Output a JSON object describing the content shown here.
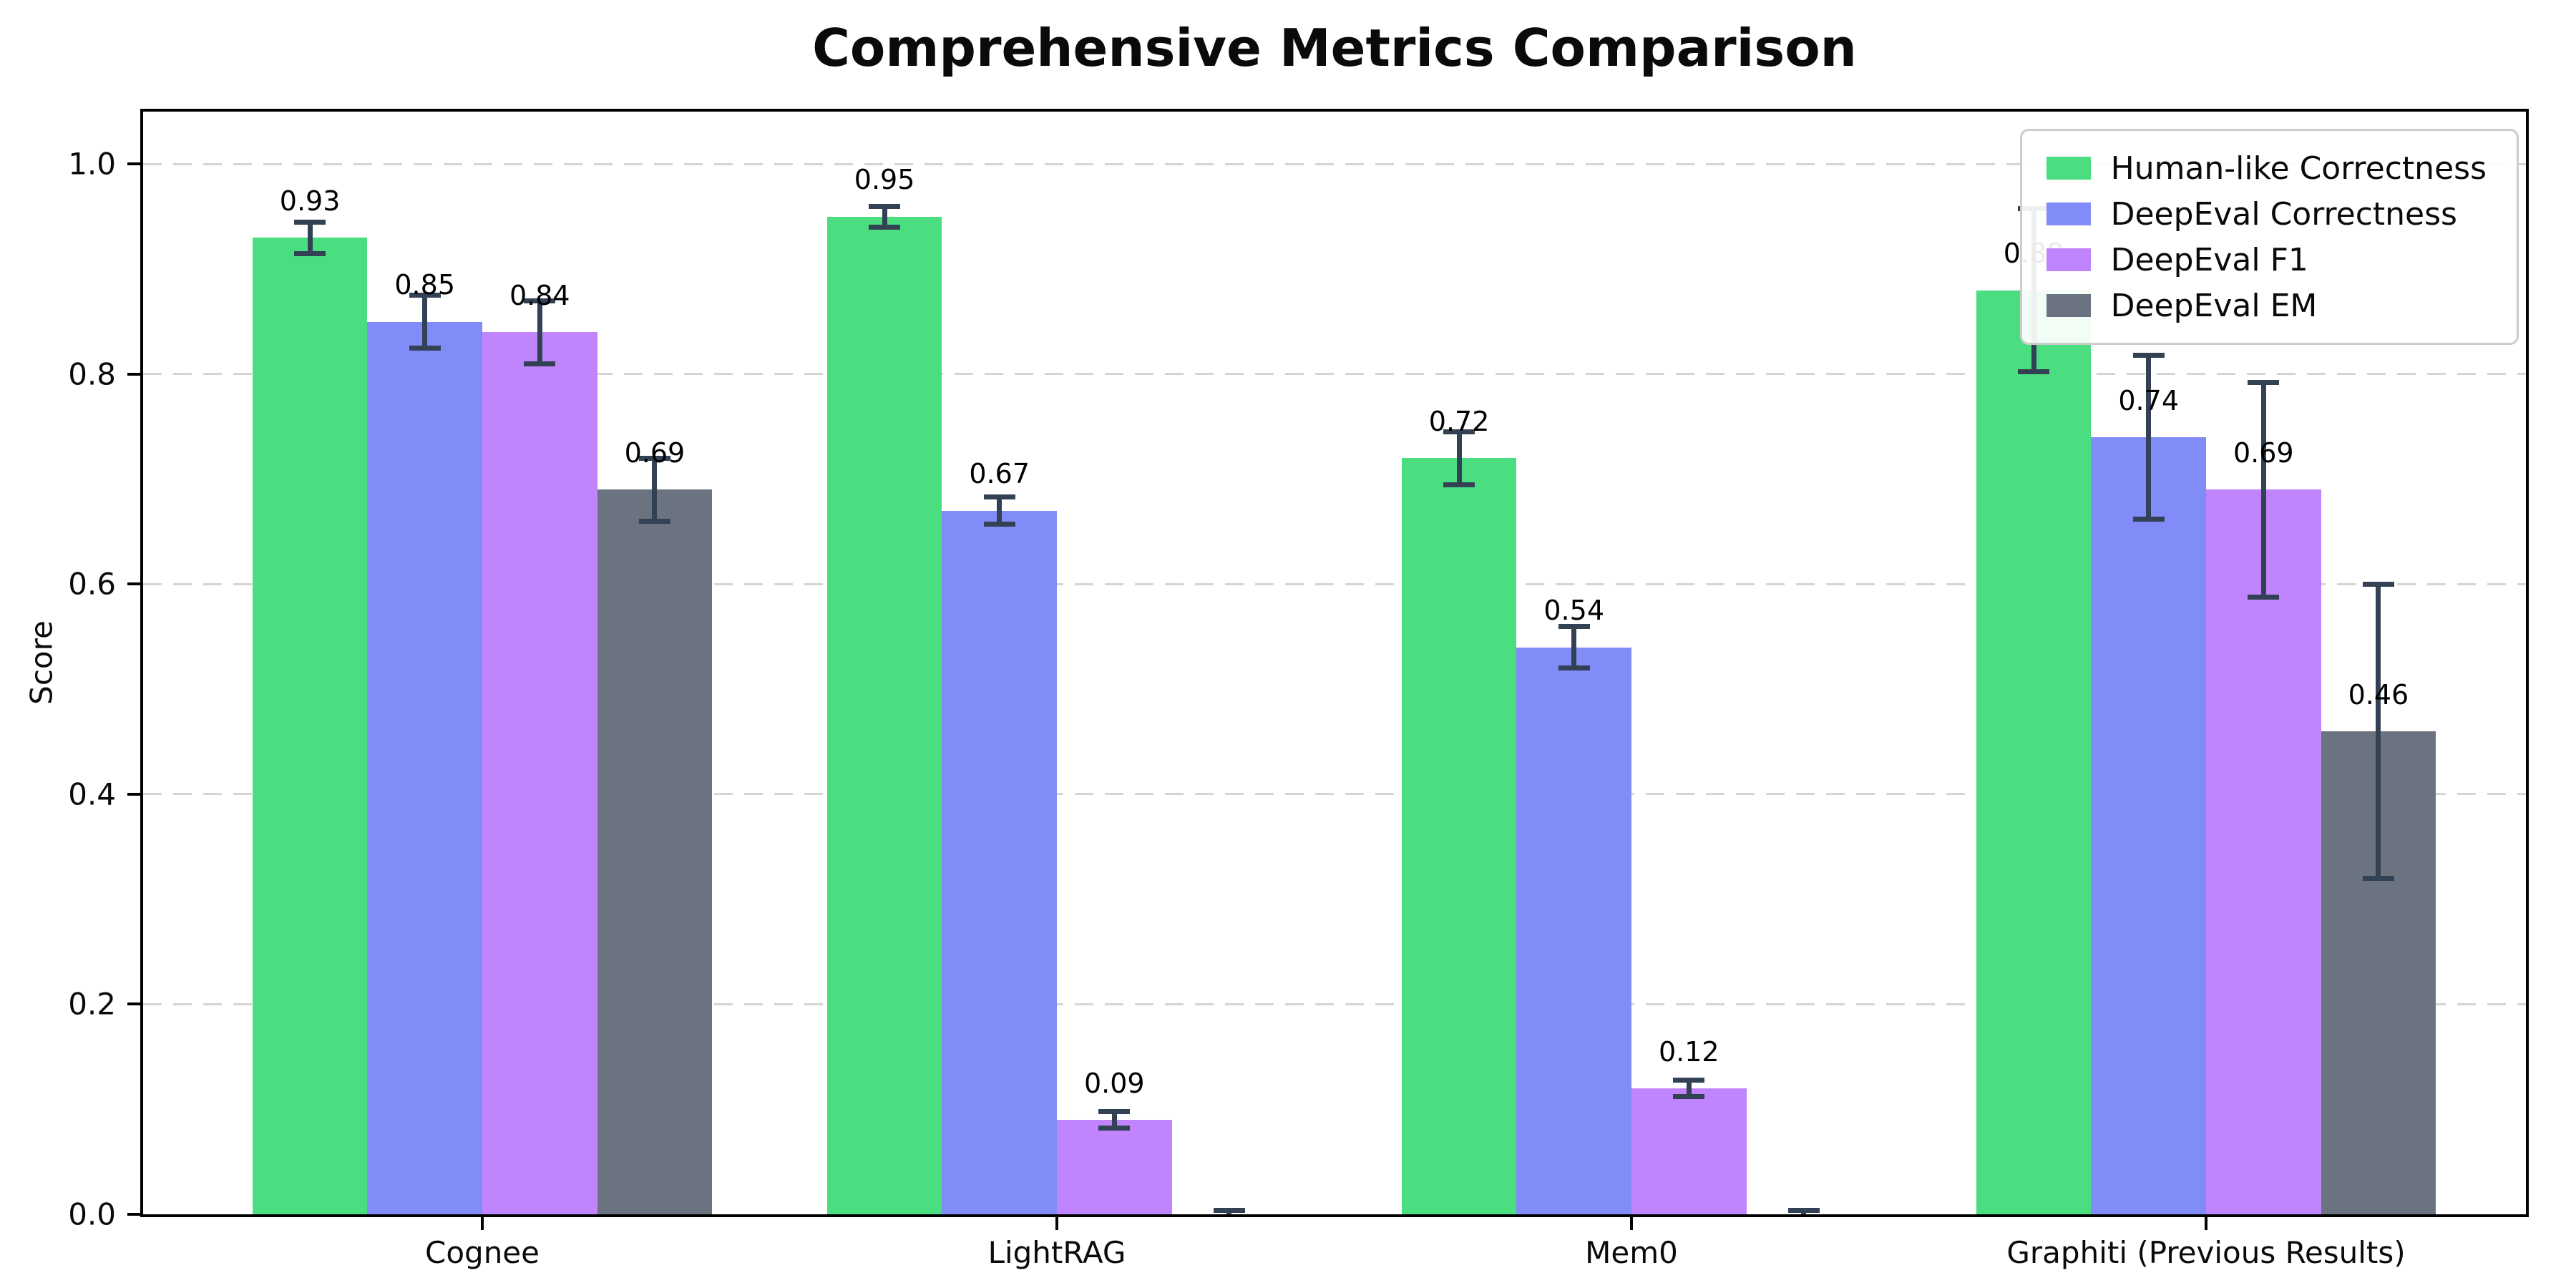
{
  "chart_data": {
    "type": "bar",
    "title": "Comprehensive Metrics Comparison",
    "xlabel": "",
    "ylabel": "Score",
    "categories": [
      "Cognee",
      "LightRAG",
      "Mem0",
      "Graphiti (Previous Results)"
    ],
    "series": [
      {
        "name": "Human-like Correctness",
        "color": "#4ade80",
        "values": [
          0.93,
          0.95,
          0.72,
          0.88
        ],
        "errors": [
          0.015,
          0.01,
          0.025,
          0.078
        ],
        "labels": [
          "0.93",
          "0.95",
          "0.72",
          "0.88"
        ]
      },
      {
        "name": "DeepEval Correctness",
        "color": "#818cf8",
        "values": [
          0.85,
          0.67,
          0.54,
          0.74
        ],
        "errors": [
          0.025,
          0.013,
          0.02,
          0.078
        ],
        "labels": [
          "0.85",
          "0.67",
          "0.54",
          "0.74"
        ]
      },
      {
        "name": "DeepEval F1",
        "color": "#c084fc",
        "values": [
          0.84,
          0.09,
          0.12,
          0.69
        ],
        "errors": [
          0.03,
          0.008,
          0.008,
          0.102
        ],
        "labels": [
          "0.84",
          "0.09",
          "0.12",
          "0.69"
        ]
      },
      {
        "name": "DeepEval EM",
        "color": "#6b7280",
        "values": [
          0.69,
          0.0,
          0.0,
          0.46
        ],
        "errors": [
          0.03,
          0.004,
          0.004,
          0.14
        ],
        "labels": [
          "0.69",
          "",
          "",
          "0.46"
        ]
      }
    ],
    "yticks": [
      "0.0",
      "0.2",
      "0.4",
      "0.6",
      "0.8",
      "1.0"
    ],
    "ylim": [
      0.0,
      1.05
    ],
    "grid": "horizontal-dashed",
    "grid_color": "#d5d5d5",
    "error_bar_color": "#334155",
    "legend_position": "upper-right",
    "background_color": "#ffffff"
  }
}
